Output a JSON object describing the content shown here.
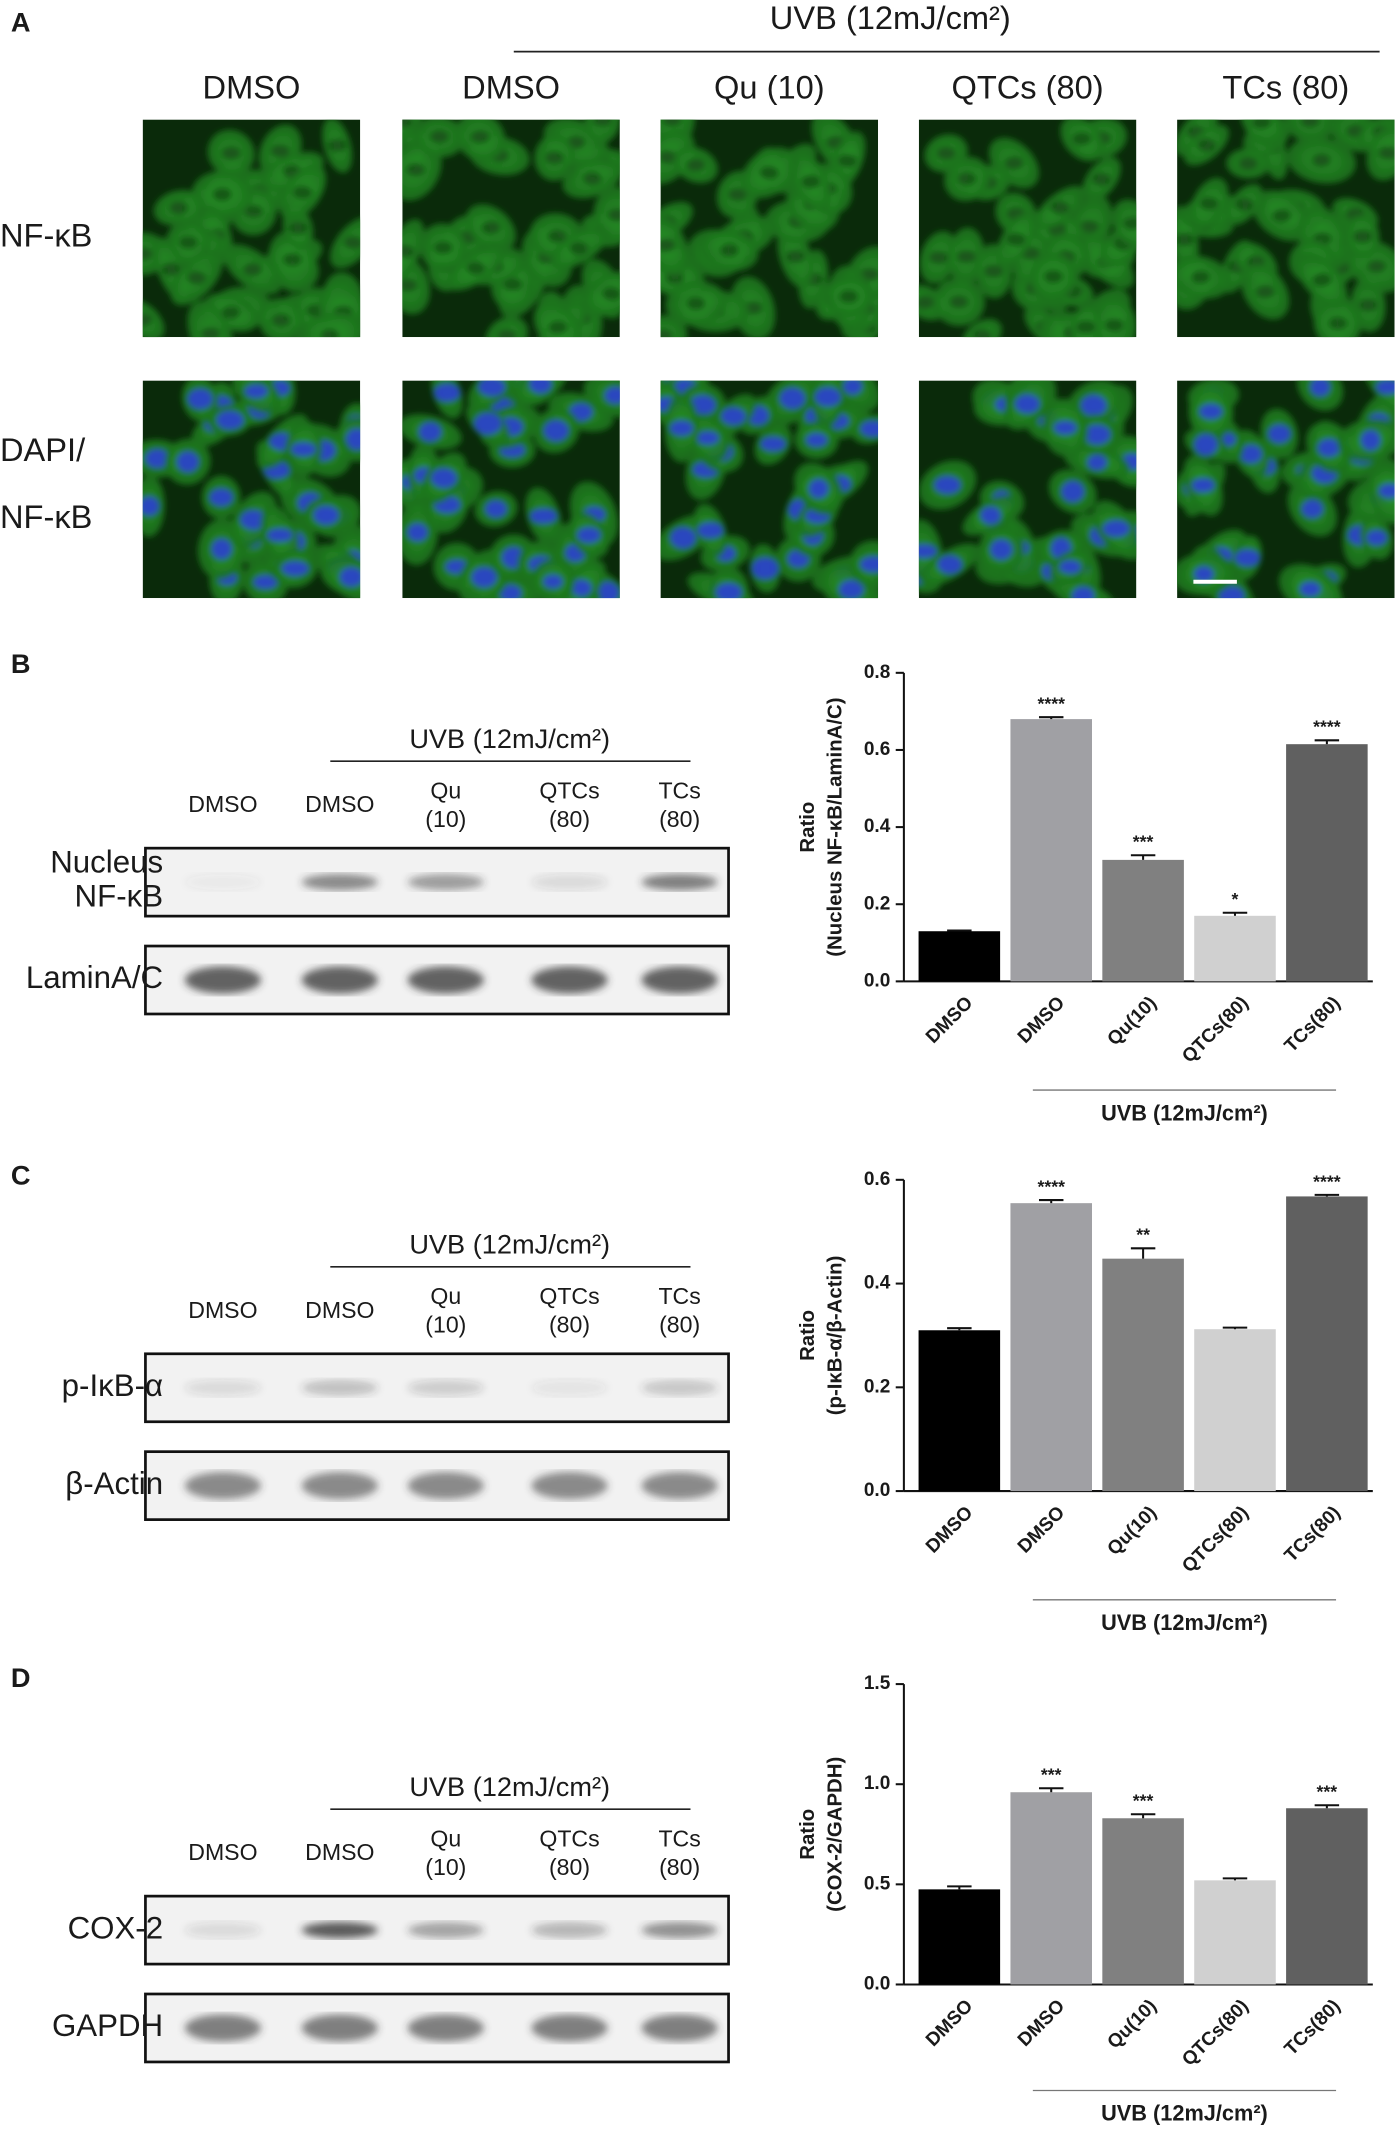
{
  "panel_labels": [
    "A",
    "B",
    "C",
    "D"
  ],
  "panel_a": {
    "group_label": "UVB (12mJ/cm²)",
    "columns": [
      "DMSO",
      "DMSO",
      "Qu (10)",
      "QTCs (80)",
      "TCs (80)"
    ],
    "rows": [
      [
        "NF-κB"
      ],
      [
        "DAPI/",
        "NF-κB"
      ]
    ]
  },
  "blots": [
    {
      "group_label": "UVB (12mJ/cm²)",
      "lanes": [
        [
          "DMSO"
        ],
        [
          "DMSO"
        ],
        [
          "Qu",
          "(10)"
        ],
        [
          "QTCs",
          "(80)"
        ],
        [
          "TCs",
          "(80)"
        ]
      ],
      "rows": [
        [
          "Nucleus",
          "NF-κB"
        ],
        [
          "LaminA/C"
        ]
      ]
    },
    {
      "group_label": "UVB (12mJ/cm²)",
      "lanes": [
        [
          "DMSO"
        ],
        [
          "DMSO"
        ],
        [
          "Qu",
          "(10)"
        ],
        [
          "QTCs",
          "(80)"
        ],
        [
          "TCs",
          "(80)"
        ]
      ],
      "rows": [
        [
          "p-IκB-α"
        ],
        [
          "β-Actin"
        ]
      ]
    },
    {
      "group_label": "UVB (12mJ/cm²)",
      "lanes": [
        [
          "DMSO"
        ],
        [
          "DMSO"
        ],
        [
          "Qu",
          "(10)"
        ],
        [
          "QTCs",
          "(80)"
        ],
        [
          "TCs",
          "(80)"
        ]
      ],
      "rows": [
        [
          "COX-2"
        ],
        [
          "GAPDH"
        ]
      ]
    }
  ],
  "chart_data": [
    {
      "type": "bar",
      "ylabel": [
        "Ratio",
        "(Nucleus NF-κB/LaminA/C)"
      ],
      "categories": [
        "DMSO",
        "DMSO",
        "Qu(10)",
        "QTCs(80)",
        "TCs(80)"
      ],
      "values": [
        0.13,
        0.68,
        0.315,
        0.17,
        0.615
      ],
      "errors": [
        0.002,
        0.005,
        0.012,
        0.008,
        0.01
      ],
      "annotations": [
        null,
        "****",
        "***",
        "*",
        "****"
      ],
      "colors": [
        "#000000",
        "#a0a0a4",
        "#808080",
        "#d0d0d0",
        "#606060"
      ],
      "group_label": "UVB (12mJ/cm²)",
      "ylim": [
        0,
        0.8
      ],
      "yticks": [
        {
          "value": 0,
          "label": "0.0"
        },
        0.2,
        0.4,
        0.6,
        0.8
      ]
    },
    {
      "type": "bar",
      "ylabel": [
        "Ratio",
        "(p-IκB-α/β-Actin)"
      ],
      "categories": [
        "DMSO",
        "DMSO",
        "Qu(10)",
        "QTCs(80)",
        "TCs(80)"
      ],
      "values": [
        0.31,
        0.555,
        0.448,
        0.312,
        0.568
      ],
      "errors": [
        0.004,
        0.006,
        0.02,
        0.003,
        0.003
      ],
      "annotations": [
        null,
        "****",
        "**",
        null,
        "****"
      ],
      "colors": [
        "#000000",
        "#a0a0a4",
        "#808080",
        "#d0d0d0",
        "#606060"
      ],
      "group_label": "UVB (12mJ/cm²)",
      "ylim": [
        0,
        0.6
      ],
      "yticks": [
        {
          "value": 0,
          "label": "0.0"
        },
        0.2,
        0.4,
        0.6
      ]
    },
    {
      "type": "bar",
      "ylabel": [
        "Ratio",
        "(COX-2/GAPDH)"
      ],
      "categories": [
        "DMSO",
        "DMSO",
        "Qu(10)",
        "QTCs(80)",
        "TCs(80)"
      ],
      "values": [
        0.475,
        0.96,
        0.83,
        0.52,
        0.88
      ],
      "errors": [
        0.015,
        0.02,
        0.02,
        0.01,
        0.015
      ],
      "annotations": [
        null,
        "***",
        "***",
        null,
        "***"
      ],
      "colors": [
        "#000000",
        "#a0a0a4",
        "#808080",
        "#d0d0d0",
        "#606060"
      ],
      "group_label": "UVB (12mJ/cm²)",
      "ylim": [
        0,
        1.5
      ],
      "yticks": [
        {
          "value": 0,
          "label": "0.0"
        },
        0.5,
        {
          "value": 1,
          "label": "1.0"
        },
        1.5
      ]
    }
  ]
}
